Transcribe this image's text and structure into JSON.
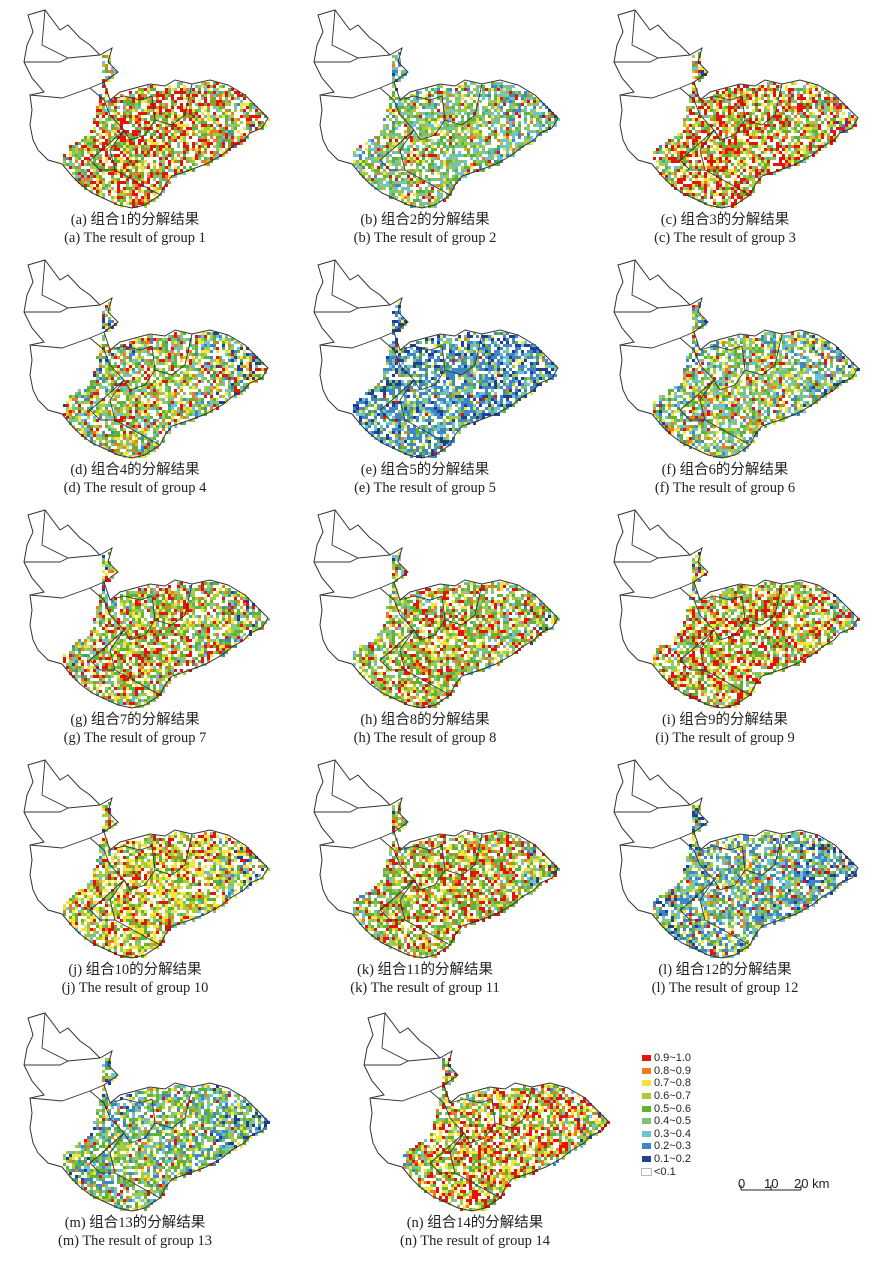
{
  "panels": [
    {
      "id": "a",
      "caption_zh": "(a) 组合1的分解结果",
      "caption_en": "(a) The result of group 1",
      "dist": [
        0.05,
        0.04,
        0.06,
        0.08,
        0.1,
        0.16,
        0.12,
        0.1,
        0.07,
        0.22
      ]
    },
    {
      "id": "b",
      "caption_zh": "(b) 组合2的分解结果",
      "caption_en": "(b) The result of group 2",
      "dist": [
        0.04,
        0.06,
        0.14,
        0.18,
        0.18,
        0.16,
        0.1,
        0.06,
        0.03,
        0.05
      ]
    },
    {
      "id": "c",
      "caption_zh": "(c) 组合3的分解结果",
      "caption_en": "(c) The result of group 3",
      "dist": [
        0.05,
        0.05,
        0.05,
        0.07,
        0.1,
        0.14,
        0.12,
        0.1,
        0.07,
        0.25
      ]
    },
    {
      "id": "d",
      "caption_zh": "(d) 组合4的分解结果",
      "caption_en": "(d) The result of group 4",
      "dist": [
        0.05,
        0.14,
        0.1,
        0.08,
        0.1,
        0.14,
        0.14,
        0.1,
        0.06,
        0.09
      ]
    },
    {
      "id": "e",
      "caption_zh": "(e) 组合5的分解结果",
      "caption_en": "(e) The result of group 5",
      "dist": [
        0.05,
        0.3,
        0.3,
        0.12,
        0.07,
        0.06,
        0.05,
        0.03,
        0.01,
        0.01
      ]
    },
    {
      "id": "f",
      "caption_zh": "(f) 组合6的分解结果",
      "caption_en": "(f) The result of group 6",
      "dist": [
        0.05,
        0.12,
        0.14,
        0.14,
        0.12,
        0.12,
        0.12,
        0.1,
        0.04,
        0.05
      ]
    },
    {
      "id": "g",
      "caption_zh": "(g) 组合7的分解结果",
      "caption_en": "(g) The result of group 7",
      "dist": [
        0.05,
        0.08,
        0.08,
        0.08,
        0.1,
        0.18,
        0.14,
        0.1,
        0.05,
        0.14
      ]
    },
    {
      "id": "h",
      "caption_zh": "(h) 组合8的分解结果",
      "caption_en": "(h) The result of group 8",
      "dist": [
        0.05,
        0.06,
        0.06,
        0.08,
        0.12,
        0.2,
        0.14,
        0.1,
        0.05,
        0.14
      ]
    },
    {
      "id": "i",
      "caption_zh": "(i) 组合9的分解结果",
      "caption_en": "(i) The result of group 9",
      "dist": [
        0.05,
        0.05,
        0.05,
        0.07,
        0.1,
        0.16,
        0.14,
        0.12,
        0.06,
        0.2
      ]
    },
    {
      "id": "j",
      "caption_zh": "(j) 组合10的分解结果",
      "caption_en": "(j) The result of group 10",
      "dist": [
        0.05,
        0.06,
        0.05,
        0.06,
        0.08,
        0.16,
        0.14,
        0.24,
        0.04,
        0.12
      ]
    },
    {
      "id": "k",
      "caption_zh": "(k) 组合11的分解结果",
      "caption_en": "(k) The result of group 11",
      "dist": [
        0.05,
        0.05,
        0.05,
        0.07,
        0.1,
        0.2,
        0.14,
        0.12,
        0.06,
        0.16
      ]
    },
    {
      "id": "l",
      "caption_zh": "(l) 组合12的分解结果",
      "caption_en": "(l) The result of group 12",
      "dist": [
        0.05,
        0.2,
        0.22,
        0.14,
        0.1,
        0.1,
        0.08,
        0.05,
        0.03,
        0.03
      ]
    },
    {
      "id": "m",
      "caption_zh": "(m) 组合13的分解结果",
      "caption_en": "(m) The result of group 13",
      "dist": [
        0.05,
        0.16,
        0.14,
        0.1,
        0.12,
        0.2,
        0.12,
        0.06,
        0.02,
        0.03
      ]
    },
    {
      "id": "n",
      "caption_zh": "(n) 组合14的分解结果",
      "caption_en": "(n) The result of group 14",
      "dist": [
        0.05,
        0.06,
        0.06,
        0.06,
        0.08,
        0.14,
        0.12,
        0.18,
        0.07,
        0.18
      ]
    }
  ],
  "legend": [
    {
      "label": "0.9~1.0",
      "color": "#e8120c"
    },
    {
      "label": "0.8~0.9",
      "color": "#f27a1a"
    },
    {
      "label": "0.7~0.8",
      "color": "#f5e43a"
    },
    {
      "label": "0.6~0.7",
      "color": "#a9cd3a"
    },
    {
      "label": "0.5~0.6",
      "color": "#5fb233"
    },
    {
      "label": "0.4~0.5",
      "color": "#7fbf7a"
    },
    {
      "label": "0.3~0.4",
      "color": "#6cc3d6"
    },
    {
      "label": "0.2~0.3",
      "color": "#3f86c6"
    },
    {
      "label": "0.1~0.2",
      "color": "#1f3f99"
    },
    {
      "label": "<0.1",
      "color": "#ffffff"
    }
  ],
  "scale_bar": {
    "ticks": [
      "0",
      "10",
      "20 km"
    ]
  }
}
